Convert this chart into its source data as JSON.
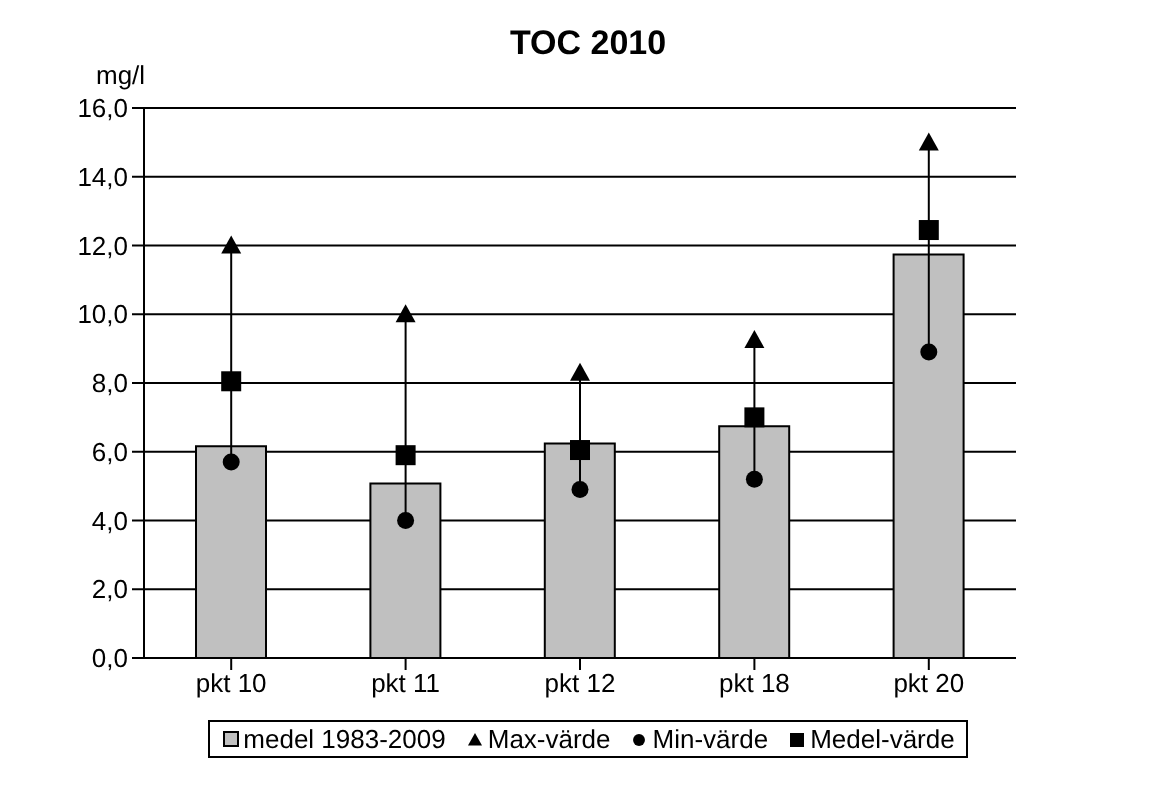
{
  "chart_data": {
    "type": "bar",
    "title": "TOC 2010",
    "ylabel": "mg/l",
    "categories": [
      "pkt 10",
      "pkt 11",
      "pkt 12",
      "pkt 18",
      "pkt 20"
    ],
    "series": [
      {
        "name": "medel 1983-2009",
        "color": "#c0c0c0",
        "values": [
          6.16,
          5.08,
          6.24,
          6.74,
          11.74
        ]
      },
      {
        "name": "Max-värde",
        "type": "scatter",
        "marker": "triangle",
        "color": "#000000",
        "values": [
          12.0,
          10.0,
          8.3,
          9.25,
          15.0
        ]
      },
      {
        "name": "Min-värde",
        "type": "scatter",
        "marker": "circle",
        "color": "#000000",
        "values": [
          5.7,
          4.0,
          4.9,
          5.2,
          8.9
        ]
      },
      {
        "name": "Medel-värde",
        "type": "scatter",
        "marker": "square",
        "color": "#000000",
        "values": [
          8.05,
          5.9,
          6.05,
          7.0,
          12.45
        ]
      }
    ],
    "ylim": [
      0,
      16
    ],
    "yticks": [
      {
        "value": 0,
        "label": "0,0"
      },
      {
        "value": 2,
        "label": "2,0"
      },
      {
        "value": 4,
        "label": "4,0"
      },
      {
        "value": 6,
        "label": "6,0"
      },
      {
        "value": 8,
        "label": "8,0"
      },
      {
        "value": 10,
        "label": "10,0"
      },
      {
        "value": 12,
        "label": "12,0"
      },
      {
        "value": 14,
        "label": "14,0"
      },
      {
        "value": 16,
        "label": "16,0"
      }
    ],
    "grid": "y",
    "legend": "bottom"
  }
}
